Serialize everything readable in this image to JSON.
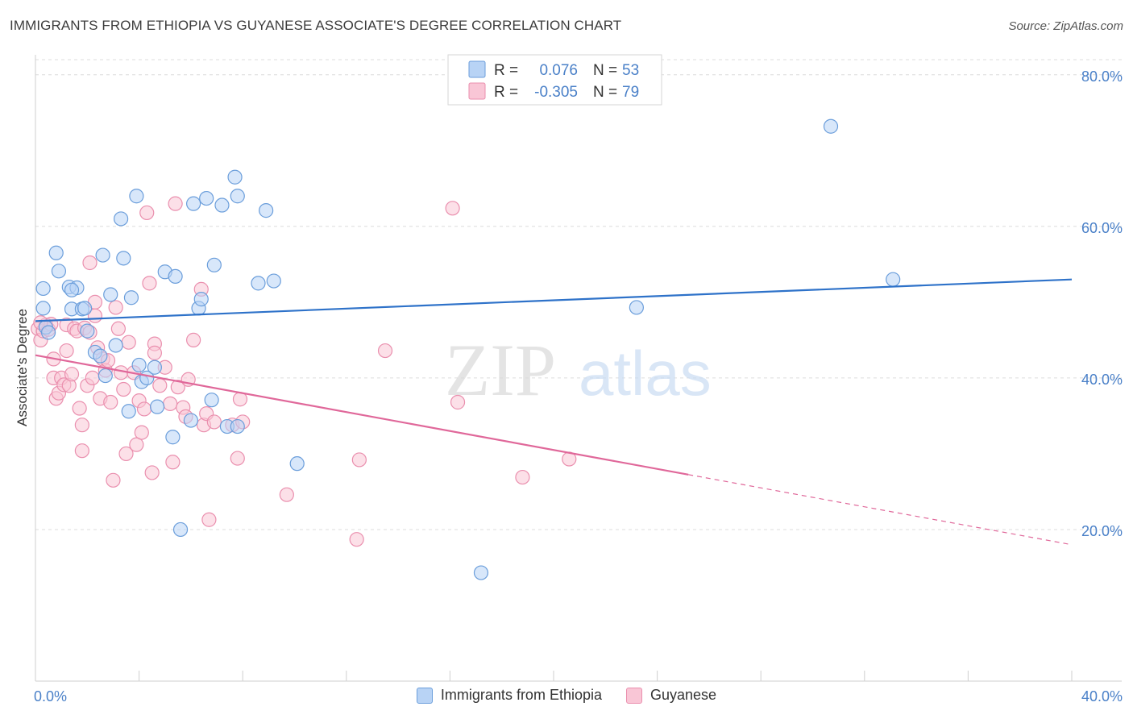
{
  "title": "IMMIGRANTS FROM ETHIOPIA VS GUYANESE ASSOCIATE'S DEGREE CORRELATION CHART",
  "source": "Source: ZipAtlas.com",
  "watermark": {
    "zip": "ZIP",
    "atlas": "atlas"
  },
  "colors": {
    "blue_fill": "#b8d3f5",
    "blue_stroke": "#6b9edb",
    "blue_line": "#2e72c9",
    "pink_fill": "#f9c6d6",
    "pink_stroke": "#ea8fae",
    "pink_line": "#e0689a",
    "axis_text": "#4a80c8",
    "grid": "#dcdcdc"
  },
  "legend_box": {
    "rows": [
      {
        "r_label": "R =",
        "r_value": "0.076",
        "n_label": "N =",
        "n_value": "53",
        "series": "blue"
      },
      {
        "r_label": "R =",
        "r_value": "-0.305",
        "n_label": "N =",
        "n_value": "79",
        "series": "pink"
      }
    ]
  },
  "chart_data": {
    "type": "scatter",
    "title": "IMMIGRANTS FROM ETHIOPIA VS GUYANESE ASSOCIATE'S DEGREE CORRELATION CHART",
    "xlabel": "",
    "ylabel": "Associate's Degree",
    "xlim": [
      0,
      40
    ],
    "ylim": [
      0,
      82
    ],
    "x_tick_labels": [
      {
        "value": 0,
        "label": "0.0%"
      },
      {
        "value": 40,
        "label": "40.0%"
      }
    ],
    "y_tick_labels": [
      {
        "value": 20,
        "label": "20.0%"
      },
      {
        "value": 40,
        "label": "40.0%"
      },
      {
        "value": 60,
        "label": "60.0%"
      },
      {
        "value": 80,
        "label": "80.0%"
      }
    ],
    "grid": true,
    "legend_position": "top-center",
    "series": [
      {
        "name": "Immigrants from Ethiopia",
        "color": "blue",
        "trend": {
          "x0": 0,
          "y0": 47.5,
          "x1": 40,
          "y1": 53.0,
          "dash_from": null
        },
        "points": [
          [
            0.3,
            49.2
          ],
          [
            0.3,
            51.8
          ],
          [
            0.4,
            46.7
          ],
          [
            0.8,
            56.5
          ],
          [
            0.9,
            54.1
          ],
          [
            1.3,
            52.0
          ],
          [
            1.6,
            51.9
          ],
          [
            1.4,
            51.6
          ],
          [
            1.4,
            49.1
          ],
          [
            1.8,
            49.1
          ],
          [
            1.9,
            49.2
          ],
          [
            2.0,
            46.2
          ],
          [
            2.3,
            43.4
          ],
          [
            2.5,
            42.9
          ],
          [
            2.6,
            56.2
          ],
          [
            2.7,
            40.3
          ],
          [
            2.9,
            51.0
          ],
          [
            3.1,
            44.3
          ],
          [
            3.3,
            61.0
          ],
          [
            3.4,
            55.8
          ],
          [
            3.6,
            35.6
          ],
          [
            3.7,
            50.6
          ],
          [
            3.9,
            64.0
          ],
          [
            4.0,
            41.7
          ],
          [
            4.1,
            39.5
          ],
          [
            4.3,
            40.0
          ],
          [
            4.6,
            41.4
          ],
          [
            4.7,
            36.2
          ],
          [
            5.0,
            54.0
          ],
          [
            5.3,
            32.2
          ],
          [
            5.4,
            53.4
          ],
          [
            5.6,
            20.0
          ],
          [
            6.0,
            34.4
          ],
          [
            6.1,
            63.0
          ],
          [
            6.3,
            49.2
          ],
          [
            6.4,
            50.4
          ],
          [
            6.6,
            63.7
          ],
          [
            6.8,
            37.1
          ],
          [
            6.9,
            54.9
          ],
          [
            7.2,
            62.8
          ],
          [
            7.4,
            33.6
          ],
          [
            7.7,
            66.5
          ],
          [
            7.8,
            64.0
          ],
          [
            7.8,
            33.6
          ],
          [
            8.6,
            52.5
          ],
          [
            8.9,
            62.1
          ],
          [
            9.2,
            52.8
          ],
          [
            10.1,
            28.7
          ],
          [
            17.2,
            14.3
          ],
          [
            23.2,
            49.3
          ],
          [
            30.7,
            73.2
          ],
          [
            33.1,
            53.0
          ],
          [
            0.5,
            46.0
          ]
        ]
      },
      {
        "name": "Guyanese",
        "color": "pink",
        "trend": {
          "x0": 0,
          "y0": 43.0,
          "x1": 40,
          "y1": 18.0,
          "dash_from": 25.2
        },
        "points": [
          [
            0.1,
            46.5
          ],
          [
            0.2,
            45.0
          ],
          [
            0.3,
            46.2
          ],
          [
            0.4,
            47.0
          ],
          [
            0.5,
            46.4
          ],
          [
            0.6,
            47.1
          ],
          [
            0.7,
            42.5
          ],
          [
            0.7,
            40.0
          ],
          [
            0.8,
            37.3
          ],
          [
            0.9,
            38.0
          ],
          [
            1.0,
            40.0
          ],
          [
            1.1,
            39.1
          ],
          [
            1.2,
            47.0
          ],
          [
            1.2,
            43.6
          ],
          [
            1.3,
            39.0
          ],
          [
            1.5,
            46.5
          ],
          [
            1.6,
            46.2
          ],
          [
            1.7,
            36.0
          ],
          [
            1.8,
            33.8
          ],
          [
            1.8,
            30.4
          ],
          [
            1.9,
            46.6
          ],
          [
            2.0,
            39.0
          ],
          [
            2.1,
            46.0
          ],
          [
            2.1,
            55.2
          ],
          [
            2.2,
            40.0
          ],
          [
            2.3,
            50.0
          ],
          [
            2.3,
            48.2
          ],
          [
            2.4,
            44.0
          ],
          [
            2.5,
            37.3
          ],
          [
            2.6,
            42.5
          ],
          [
            2.7,
            41.0
          ],
          [
            2.8,
            42.3
          ],
          [
            2.9,
            36.8
          ],
          [
            3.0,
            26.5
          ],
          [
            3.1,
            49.3
          ],
          [
            3.2,
            46.5
          ],
          [
            3.3,
            40.7
          ],
          [
            3.4,
            38.5
          ],
          [
            3.5,
            30.0
          ],
          [
            3.6,
            44.7
          ],
          [
            3.8,
            40.7
          ],
          [
            3.9,
            31.2
          ],
          [
            4.0,
            37.0
          ],
          [
            4.1,
            32.8
          ],
          [
            4.2,
            35.9
          ],
          [
            4.3,
            61.8
          ],
          [
            4.4,
            52.5
          ],
          [
            4.5,
            27.5
          ],
          [
            4.6,
            44.5
          ],
          [
            4.6,
            43.3
          ],
          [
            4.8,
            39.0
          ],
          [
            5.0,
            41.4
          ],
          [
            5.2,
            36.6
          ],
          [
            5.3,
            28.9
          ],
          [
            5.4,
            63.0
          ],
          [
            5.5,
            38.8
          ],
          [
            5.7,
            36.1
          ],
          [
            5.8,
            34.9
          ],
          [
            5.9,
            39.8
          ],
          [
            6.1,
            45.0
          ],
          [
            6.4,
            51.7
          ],
          [
            6.5,
            33.8
          ],
          [
            6.6,
            35.3
          ],
          [
            6.7,
            21.3
          ],
          [
            6.9,
            34.2
          ],
          [
            7.6,
            33.8
          ],
          [
            7.8,
            29.4
          ],
          [
            7.9,
            37.2
          ],
          [
            8.0,
            34.2
          ],
          [
            9.7,
            24.6
          ],
          [
            12.4,
            18.7
          ],
          [
            12.5,
            29.2
          ],
          [
            13.5,
            43.6
          ],
          [
            16.1,
            62.4
          ],
          [
            16.3,
            36.8
          ],
          [
            18.8,
            26.9
          ],
          [
            20.6,
            29.3
          ],
          [
            0.2,
            47.3
          ],
          [
            1.4,
            40.5
          ]
        ]
      }
    ]
  },
  "bottom_legend": [
    {
      "label": "Immigrants from Ethiopia",
      "color": "blue"
    },
    {
      "label": "Guyanese",
      "color": "pink"
    }
  ]
}
